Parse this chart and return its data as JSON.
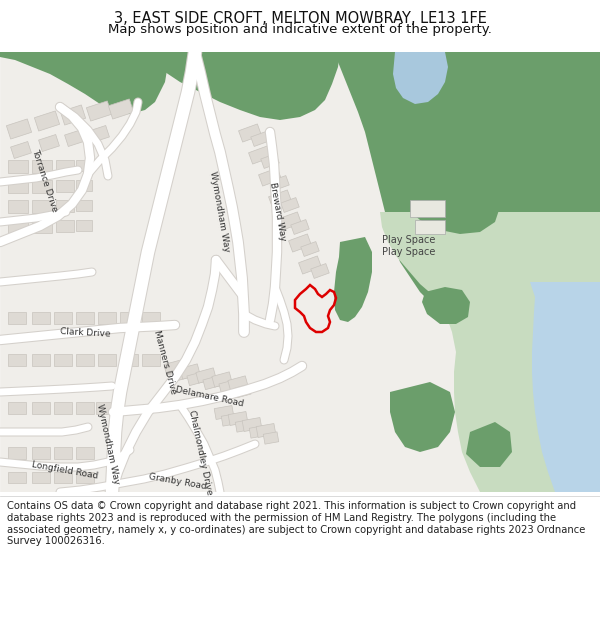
{
  "title": "3, EAST SIDE CROFT, MELTON MOWBRAY, LE13 1FE",
  "subtitle": "Map shows position and indicative extent of the property.",
  "footer": "Contains OS data © Crown copyright and database right 2021. This information is subject to Crown copyright and database rights 2023 and is reproduced with the permission of HM Land Registry. The polygons (including the associated geometry, namely x, y co-ordinates) are subject to Crown copyright and database rights 2023 Ordnance Survey 100026316.",
  "bg_color": "#f0eeea",
  "road_color": "#ffffff",
  "road_outline_color": "#d4d0cb",
  "building_color": "#dedad4",
  "building_outline_color": "#c8c4be",
  "green_dark": "#6b9e6b",
  "green_mid": "#8db88d",
  "green_light": "#c8dcc0",
  "blue_water": "#b8d4e8",
  "blue_light": "#a8c8dd",
  "highlight_color": "#dd0000",
  "title_fontsize": 10.5,
  "subtitle_fontsize": 9.5,
  "footer_fontsize": 7.2,
  "figsize": [
    6.0,
    6.25
  ],
  "dpi": 100
}
